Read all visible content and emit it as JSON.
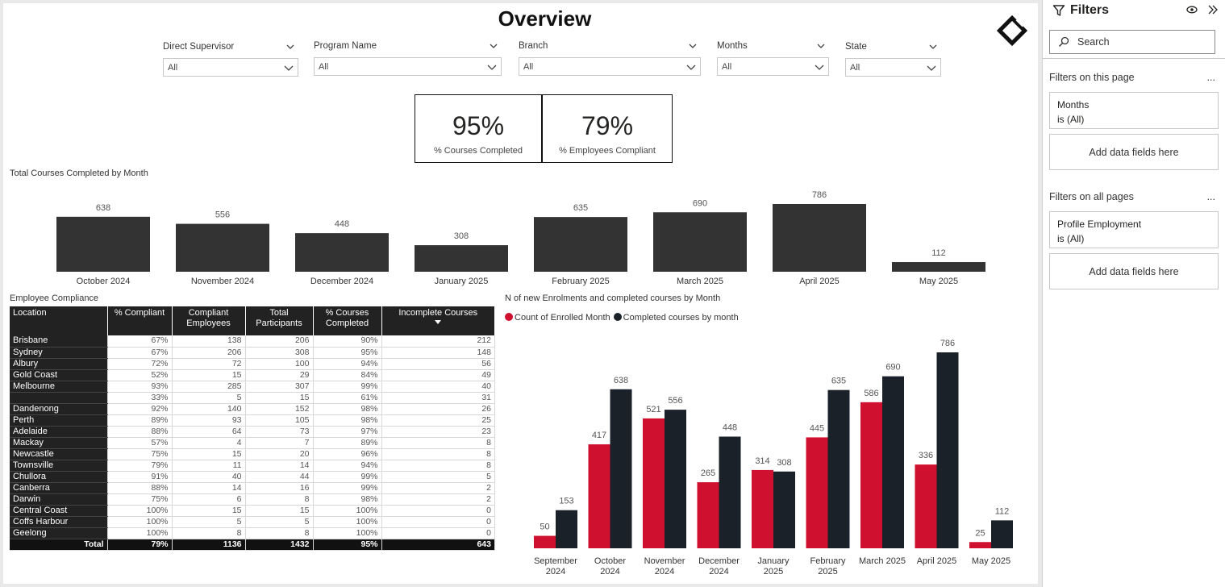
{
  "report": {
    "title": "Overview",
    "slicers": [
      {
        "label": "Direct Supervisor",
        "value": "All"
      },
      {
        "label": "Program Name",
        "value": "All"
      },
      {
        "label": "Branch",
        "value": "All"
      },
      {
        "label": "Months",
        "value": "All"
      },
      {
        "label": "State",
        "value": "All"
      }
    ],
    "kpis": [
      {
        "value": "95%",
        "label": "% Courses Completed"
      },
      {
        "value": "79%",
        "label": "% Employees Compliant"
      }
    ],
    "top_chart_label": "Total Courses Completed by Month",
    "table_label": "Employee Compliance",
    "bottom_chart_label": "N of new Enrolments and completed courses by Month",
    "legend": {
      "enrolled": "Count of Enrolled Month",
      "completed": "Completed courses by month"
    }
  },
  "table": {
    "headers": [
      "Location",
      "% Compliant",
      "Compliant Employees",
      "Total Participants",
      "% Courses Completed",
      "Incomplete Courses"
    ],
    "rows": [
      [
        "Brisbane",
        "67%",
        "138",
        "206",
        "90%",
        "212"
      ],
      [
        "Sydney",
        "67%",
        "206",
        "308",
        "95%",
        "148"
      ],
      [
        "Albury",
        "72%",
        "72",
        "100",
        "94%",
        "56"
      ],
      [
        "Gold Coast",
        "52%",
        "15",
        "29",
        "84%",
        "49"
      ],
      [
        "Melbourne",
        "93%",
        "285",
        "307",
        "99%",
        "40"
      ],
      [
        "",
        "33%",
        "5",
        "15",
        "61%",
        "31"
      ],
      [
        "Dandenong",
        "92%",
        "140",
        "152",
        "98%",
        "26"
      ],
      [
        "Perth",
        "89%",
        "93",
        "105",
        "98%",
        "25"
      ],
      [
        "Adelaide",
        "88%",
        "64",
        "73",
        "97%",
        "23"
      ],
      [
        "Mackay",
        "57%",
        "4",
        "7",
        "89%",
        "8"
      ],
      [
        "Newcastle",
        "75%",
        "15",
        "20",
        "96%",
        "8"
      ],
      [
        "Townsville",
        "79%",
        "11",
        "14",
        "94%",
        "8"
      ],
      [
        "Chullora",
        "91%",
        "40",
        "44",
        "99%",
        "5"
      ],
      [
        "Canberra",
        "88%",
        "14",
        "16",
        "99%",
        "2"
      ],
      [
        "Darwin",
        "75%",
        "6",
        "8",
        "98%",
        "2"
      ],
      [
        "Central Coast",
        "100%",
        "15",
        "15",
        "100%",
        "0"
      ],
      [
        "Coffs Harbour",
        "100%",
        "5",
        "5",
        "100%",
        "0"
      ],
      [
        "Geelong",
        "100%",
        "8",
        "8",
        "100%",
        "0"
      ]
    ],
    "total": [
      "Total",
      "79%",
      "1136",
      "1432",
      "95%",
      "643"
    ]
  },
  "chart_data": [
    {
      "type": "bar",
      "title": "Total Courses Completed by Month",
      "categories": [
        "October 2024",
        "November 2024",
        "December 2024",
        "January 2025",
        "February 2025",
        "March 2025",
        "April 2025",
        "May 2025"
      ],
      "values": [
        638,
        556,
        448,
        308,
        635,
        690,
        786,
        112
      ],
      "colors": {
        "bar": "#333333"
      }
    },
    {
      "type": "bar",
      "title": "N of new Enrolments and completed courses by Month",
      "categories": [
        [
          "September",
          "2024"
        ],
        [
          "October",
          "2024"
        ],
        [
          "November",
          "2024"
        ],
        [
          "December",
          "2024"
        ],
        [
          "January",
          "2025"
        ],
        [
          "February",
          "2025"
        ],
        [
          "March 2025"
        ],
        [
          "April 2025"
        ],
        [
          "May 2025"
        ]
      ],
      "series": [
        {
          "name": "Count of Enrolled Month",
          "values": [
            50,
            417,
            521,
            265,
            314,
            445,
            586,
            336,
            25
          ],
          "color": "#d0102f"
        },
        {
          "name": "Completed courses by month",
          "values": [
            153,
            638,
            556,
            448,
            308,
            635,
            690,
            786,
            112
          ],
          "color": "#1b2129"
        }
      ],
      "legend": "top-left"
    }
  ],
  "filters": {
    "title": "Filters",
    "search_label": "Search",
    "this_page_label": "Filters on this page",
    "all_pages_label": "Filters on all pages",
    "more": "...",
    "page_filter": {
      "field": "Months",
      "state": "is (All)"
    },
    "all_filter": {
      "field": "Profile Employment",
      "state": "is (All)"
    },
    "add_label": "Add data fields here"
  }
}
